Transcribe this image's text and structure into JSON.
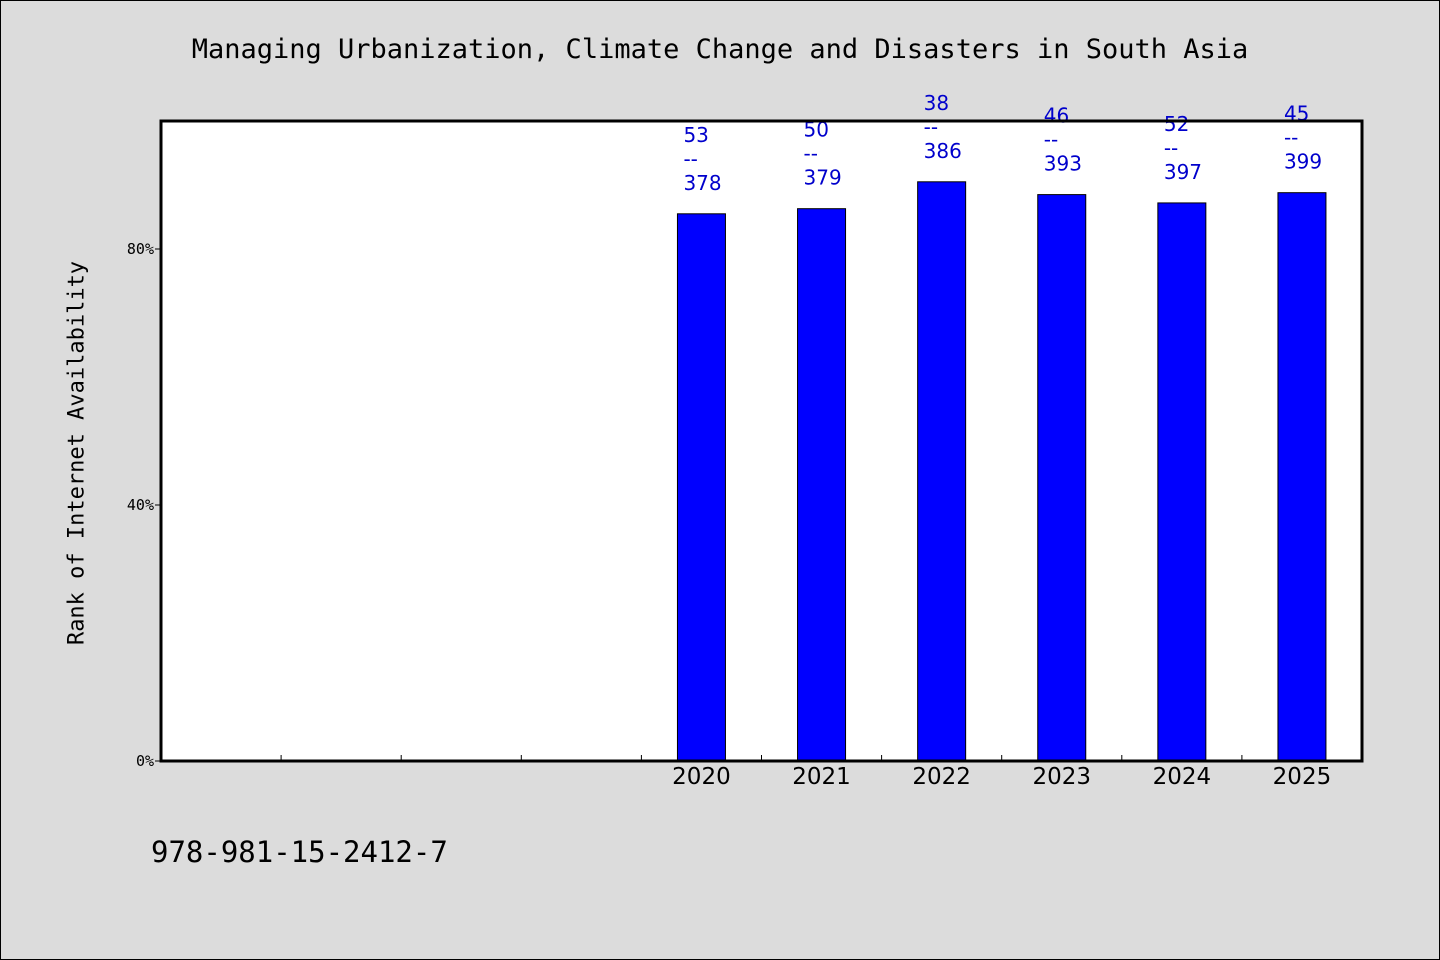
{
  "chart_data": {
    "type": "bar",
    "title": "Managing Urbanization, Climate Change and Disasters in South Asia",
    "xlabel": "",
    "ylabel": "Rank of Internet Availability",
    "categories": [
      "",
      "",
      "",
      "",
      "2020",
      "2021",
      "2022",
      "2023",
      "2024",
      "2025"
    ],
    "values": [
      null,
      null,
      null,
      null,
      85.5,
      86.3,
      90.5,
      88.5,
      87.2,
      88.8
    ],
    "annotations": [
      null,
      null,
      null,
      null,
      {
        "rank": "53",
        "sep": "--",
        "total": "378"
      },
      {
        "rank": "50",
        "sep": "--",
        "total": "379"
      },
      {
        "rank": "38",
        "sep": "--",
        "total": "386"
      },
      {
        "rank": "46",
        "sep": "--",
        "total": "393"
      },
      {
        "rank": "52",
        "sep": "--",
        "total": "397"
      },
      {
        "rank": "45",
        "sep": "--",
        "total": "399"
      }
    ],
    "yticks": [
      0,
      40,
      80
    ],
    "ytick_labels": [
      "0%",
      "40%",
      "80%"
    ],
    "ylim": [
      0,
      100
    ],
    "grid": false,
    "legend": "none",
    "bar_color": "#0000ff",
    "label_color": "#0000cc",
    "background": "#dcdcdc",
    "plot_background": "#ffffff"
  },
  "footer": {
    "isbn": "978-981-15-2412-7"
  }
}
